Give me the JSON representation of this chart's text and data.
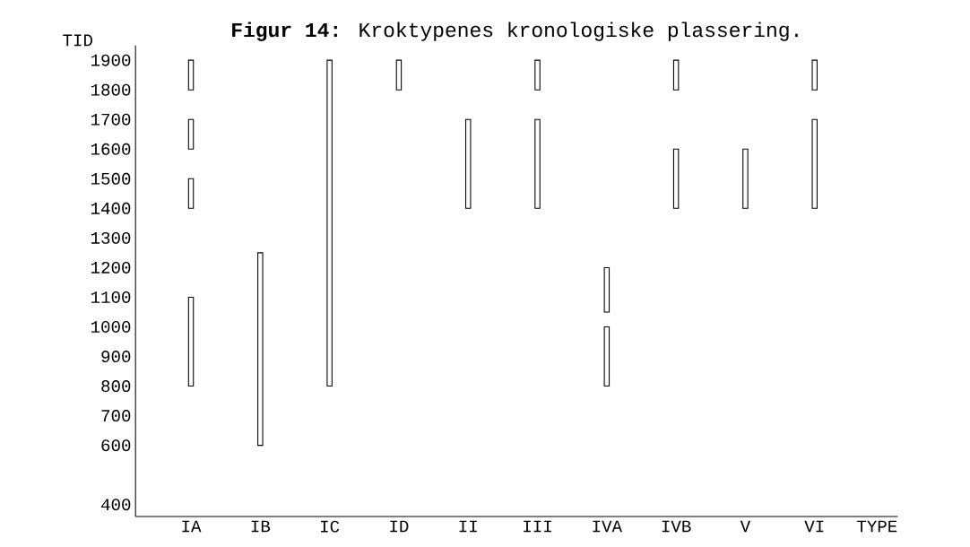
{
  "chart_data": {
    "type": "bar",
    "title": "**Figur 14:** Kroktypenes kronologiske plassering.",
    "ylabel": "TID",
    "xlabel": "TYPE",
    "categories": [
      "IA",
      "IB",
      "IC",
      "ID",
      "II",
      "III",
      "IVA",
      "IVB",
      "V",
      "VI"
    ],
    "series": [
      {
        "color": "#000000",
        "base": [
          1800,
          600,
          800,
          1800,
          1400,
          1800,
          1050,
          1800,
          1400,
          1800
        ],
        "values": [
          100,
          650,
          1100,
          100,
          300,
          100,
          150,
          100,
          200,
          100
        ]
      },
      {
        "color": "#000000",
        "base": [
          1600,
          null,
          null,
          null,
          null,
          1400,
          800,
          1400,
          null,
          1400
        ],
        "values": [
          100,
          null,
          null,
          null,
          null,
          300,
          200,
          200,
          null,
          300
        ]
      },
      {
        "color": "#000000",
        "base": [
          1400,
          null,
          null,
          null,
          null,
          null,
          null,
          null,
          null,
          null
        ],
        "values": [
          100,
          null,
          null,
          null,
          null,
          null,
          null,
          null,
          null,
          null
        ]
      },
      {
        "color": "#000000",
        "base": [
          800,
          null,
          null,
          null,
          null,
          null,
          null,
          null,
          null,
          null
        ],
        "values": [
          300,
          null,
          null,
          null,
          null,
          null,
          null,
          null,
          null,
          null
        ]
      }
    ],
    "ylim": [
      360,
      1950
    ],
    "yticks": [
      400,
      600,
      700,
      800,
      900,
      1000,
      1100,
      1200,
      1300,
      1400,
      1500,
      1600,
      1700,
      1800,
      1900
    ],
    "grid": false
  }
}
